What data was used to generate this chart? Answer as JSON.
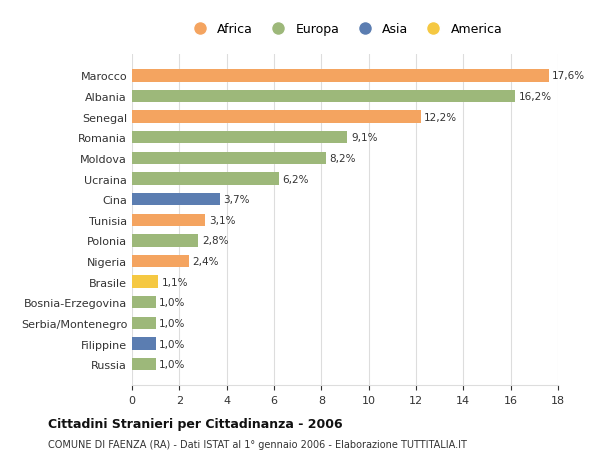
{
  "countries": [
    "Russia",
    "Filippine",
    "Serbia/Montenegro",
    "Bosnia-Erzegovina",
    "Brasile",
    "Nigeria",
    "Polonia",
    "Tunisia",
    "Cina",
    "Ucraina",
    "Moldova",
    "Romania",
    "Senegal",
    "Albania",
    "Marocco"
  ],
  "values": [
    1.0,
    1.0,
    1.0,
    1.0,
    1.1,
    2.4,
    2.8,
    3.1,
    3.7,
    6.2,
    8.2,
    9.1,
    12.2,
    16.2,
    17.6
  ],
  "continents": [
    "Europa",
    "Asia",
    "Europa",
    "Europa",
    "America",
    "Africa",
    "Europa",
    "Africa",
    "Asia",
    "Europa",
    "Europa",
    "Europa",
    "Africa",
    "Europa",
    "Africa"
  ],
  "colors": {
    "Africa": "#F4A460",
    "Europa": "#9DB87A",
    "Asia": "#5B7DB1",
    "America": "#F5C842"
  },
  "legend_order": [
    "Africa",
    "Europa",
    "Asia",
    "America"
  ],
  "title": "Cittadini Stranieri per Cittadinanza - 2006",
  "subtitle": "COMUNE DI FAENZA (RA) - Dati ISTAT al 1° gennaio 2006 - Elaborazione TUTTITALIA.IT",
  "xlim": [
    0,
    18
  ],
  "xticks": [
    0,
    2,
    4,
    6,
    8,
    10,
    12,
    14,
    16,
    18
  ],
  "background_color": "#ffffff",
  "bar_height": 0.6,
  "grid_color": "#dddddd"
}
